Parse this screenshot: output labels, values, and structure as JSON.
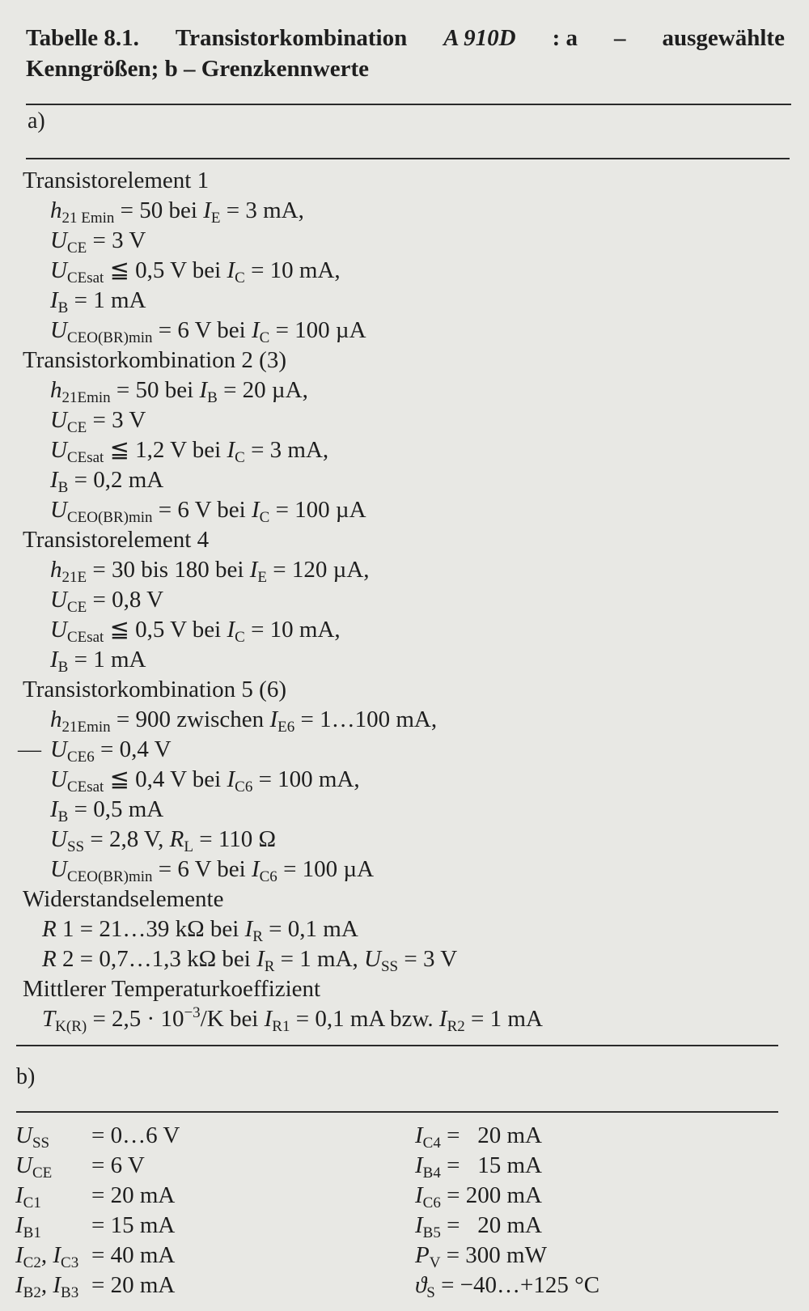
{
  "title": {
    "line1": [
      {
        "t": "Tabelle 8.1.",
        "f": ""
      },
      {
        "t": "Transistorkombination",
        "f": ""
      },
      {
        "t": "A 910D",
        "f": "i"
      },
      {
        "t": ": a",
        "f": ""
      },
      {
        "t": "–",
        "f": ""
      },
      {
        "t": "ausgewählte",
        "f": ""
      }
    ],
    "line2": "Kenngrößen; b – Grenzkennwerte"
  },
  "section_a": {
    "label": "a)",
    "lines": [
      {
        "k": "h",
        "seg": [
          {
            "t": "Transistorelement 1",
            "f": ""
          }
        ]
      },
      {
        "k": "it",
        "seg": [
          {
            "t": "h",
            "f": "i"
          },
          {
            "t": "21 Emin",
            "f": "s"
          },
          {
            "t": " = 50 bei ",
            "f": ""
          },
          {
            "t": "I",
            "f": "i"
          },
          {
            "t": "E",
            "f": "s"
          },
          {
            "t": " = 3 mA,",
            "f": ""
          }
        ]
      },
      {
        "k": "it",
        "seg": [
          {
            "t": "U",
            "f": "i"
          },
          {
            "t": "CE",
            "f": "s"
          },
          {
            "t": " = 3 V",
            "f": ""
          }
        ]
      },
      {
        "k": "it",
        "seg": [
          {
            "t": "U",
            "f": "i"
          },
          {
            "t": "CEsat",
            "f": "s"
          },
          {
            "t": " ≦ 0,5 V bei ",
            "f": ""
          },
          {
            "t": "I",
            "f": "i"
          },
          {
            "t": "C",
            "f": "s"
          },
          {
            "t": " = 10 mA,",
            "f": ""
          }
        ]
      },
      {
        "k": "it",
        "seg": [
          {
            "t": "I",
            "f": "i"
          },
          {
            "t": "B",
            "f": "s"
          },
          {
            "t": " = 1 mA",
            "f": ""
          }
        ]
      },
      {
        "k": "it",
        "seg": [
          {
            "t": "U",
            "f": "i"
          },
          {
            "t": "CEO(BR)min",
            "f": "s"
          },
          {
            "t": " = 6 V bei ",
            "f": ""
          },
          {
            "t": "I",
            "f": "i"
          },
          {
            "t": "C",
            "f": "s"
          },
          {
            "t": " = 100 µA",
            "f": ""
          }
        ]
      },
      {
        "k": "h",
        "seg": [
          {
            "t": "Transistorkombination 2 (3)",
            "f": ""
          }
        ]
      },
      {
        "k": "it",
        "seg": [
          {
            "t": "h",
            "f": "i"
          },
          {
            "t": "21Emin",
            "f": "s"
          },
          {
            "t": " = 50 bei ",
            "f": ""
          },
          {
            "t": "I",
            "f": "i"
          },
          {
            "t": "B",
            "f": "s"
          },
          {
            "t": " = 20 µA,",
            "f": ""
          }
        ]
      },
      {
        "k": "it",
        "seg": [
          {
            "t": "U",
            "f": "i"
          },
          {
            "t": "CE",
            "f": "s"
          },
          {
            "t": " = 3 V",
            "f": ""
          }
        ]
      },
      {
        "k": "it",
        "seg": [
          {
            "t": "U",
            "f": "i"
          },
          {
            "t": "CEsat",
            "f": "s"
          },
          {
            "t": " ≦ 1,2 V bei ",
            "f": ""
          },
          {
            "t": "I",
            "f": "i"
          },
          {
            "t": "C",
            "f": "s"
          },
          {
            "t": " = 3 mA,",
            "f": ""
          }
        ]
      },
      {
        "k": "it",
        "seg": [
          {
            "t": "I",
            "f": "i"
          },
          {
            "t": "B",
            "f": "s"
          },
          {
            "t": " = 0,2 mA",
            "f": ""
          }
        ]
      },
      {
        "k": "it",
        "seg": [
          {
            "t": "U",
            "f": "i"
          },
          {
            "t": "CEO(BR)min",
            "f": "s"
          },
          {
            "t": " = 6 V bei ",
            "f": ""
          },
          {
            "t": "I",
            "f": "i"
          },
          {
            "t": "C",
            "f": "s"
          },
          {
            "t": " = 100 µA",
            "f": ""
          }
        ]
      },
      {
        "k": "h",
        "seg": [
          {
            "t": "Transistorelement 4",
            "f": ""
          }
        ]
      },
      {
        "k": "it",
        "seg": [
          {
            "t": "h",
            "f": "i"
          },
          {
            "t": "21E",
            "f": "s"
          },
          {
            "t": " = 30 bis 180 bei ",
            "f": ""
          },
          {
            "t": "I",
            "f": "i"
          },
          {
            "t": "E",
            "f": "s"
          },
          {
            "t": " = 120 µA,",
            "f": ""
          }
        ]
      },
      {
        "k": "it",
        "seg": [
          {
            "t": "U",
            "f": "i"
          },
          {
            "t": "CE",
            "f": "s"
          },
          {
            "t": " = 0,8 V",
            "f": ""
          }
        ]
      },
      {
        "k": "it",
        "seg": [
          {
            "t": "U",
            "f": "i"
          },
          {
            "t": "CEsat",
            "f": "s"
          },
          {
            "t": " ≦ 0,5 V bei ",
            "f": ""
          },
          {
            "t": "I",
            "f": "i"
          },
          {
            "t": "C",
            "f": "s"
          },
          {
            "t": " = 10 mA,",
            "f": ""
          }
        ]
      },
      {
        "k": "it",
        "seg": [
          {
            "t": "I",
            "f": "i"
          },
          {
            "t": "B",
            "f": "s"
          },
          {
            "t": " = 1 mA",
            "f": ""
          }
        ]
      },
      {
        "k": "h",
        "seg": [
          {
            "t": "Transistorkombination 5 (6)",
            "f": ""
          }
        ]
      },
      {
        "k": "it",
        "seg": [
          {
            "t": "h",
            "f": "i"
          },
          {
            "t": "21Emin",
            "f": "s"
          },
          {
            "t": " = 900 zwischen ",
            "f": ""
          },
          {
            "t": "I",
            "f": "i"
          },
          {
            "t": "E6",
            "f": "s"
          },
          {
            "t": " = 1…100 mA,",
            "f": ""
          }
        ]
      },
      {
        "k": "it",
        "dash": "—",
        "seg": [
          {
            "t": "U",
            "f": "i"
          },
          {
            "t": "CE6",
            "f": "s"
          },
          {
            "t": " = 0,4 V",
            "f": ""
          }
        ]
      },
      {
        "k": "it",
        "seg": [
          {
            "t": "U",
            "f": "i"
          },
          {
            "t": "CEsat",
            "f": "s"
          },
          {
            "t": " ≦ 0,4 V bei ",
            "f": ""
          },
          {
            "t": "I",
            "f": "i"
          },
          {
            "t": "C6",
            "f": "s"
          },
          {
            "t": " = 100 mA,",
            "f": ""
          }
        ]
      },
      {
        "k": "it",
        "seg": [
          {
            "t": "I",
            "f": "i"
          },
          {
            "t": "B",
            "f": "s"
          },
          {
            "t": " = 0,5 mA",
            "f": ""
          }
        ]
      },
      {
        "k": "it",
        "seg": [
          {
            "t": "U",
            "f": "i"
          },
          {
            "t": "SS",
            "f": "s"
          },
          {
            "t": " = 2,8 V, ",
            "f": ""
          },
          {
            "t": "R",
            "f": "i"
          },
          {
            "t": "L",
            "f": "s"
          },
          {
            "t": " = 110 Ω",
            "f": ""
          }
        ]
      },
      {
        "k": "it",
        "seg": [
          {
            "t": "U",
            "f": "i"
          },
          {
            "t": "CEO(BR)min",
            "f": "s"
          },
          {
            "t": " = 6 V bei ",
            "f": ""
          },
          {
            "t": "I",
            "f": "i"
          },
          {
            "t": "C6",
            "f": "s"
          },
          {
            "t": " = 100 µA",
            "f": ""
          }
        ]
      },
      {
        "k": "h",
        "seg": [
          {
            "t": "Widerstandselemente",
            "f": ""
          }
        ]
      },
      {
        "k": "r",
        "seg": [
          {
            "t": "R",
            "f": "i"
          },
          {
            "t": " 1 = 21…39 kΩ bei ",
            "f": ""
          },
          {
            "t": "I",
            "f": "i"
          },
          {
            "t": "R",
            "f": "s"
          },
          {
            "t": " = 0,1 mA",
            "f": ""
          }
        ]
      },
      {
        "k": "r",
        "seg": [
          {
            "t": "R",
            "f": "i"
          },
          {
            "t": " 2 = 0,7…1,3 kΩ bei ",
            "f": ""
          },
          {
            "t": "I",
            "f": "i"
          },
          {
            "t": "R",
            "f": "s"
          },
          {
            "t": " = 1 mA, ",
            "f": ""
          },
          {
            "t": "U",
            "f": "i"
          },
          {
            "t": "SS",
            "f": "s"
          },
          {
            "t": " = 3 V",
            "f": ""
          }
        ]
      },
      {
        "k": "h",
        "seg": [
          {
            "t": "Mittlerer Temperaturkoeffizient",
            "f": ""
          }
        ]
      },
      {
        "k": "r",
        "seg": [
          {
            "t": "T",
            "f": "i"
          },
          {
            "t": "K(R)",
            "f": "s"
          },
          {
            "t": " = 2,5 · 10",
            "f": ""
          },
          {
            "t": "−3",
            "f": "p"
          },
          {
            "t": "/K bei ",
            "f": ""
          },
          {
            "t": "I",
            "f": "i"
          },
          {
            "t": "R1",
            "f": "s"
          },
          {
            "t": " = 0,1 mA bzw. ",
            "f": ""
          },
          {
            "t": "I",
            "f": "i"
          },
          {
            "t": "R2",
            "f": "s"
          },
          {
            "t": " = 1 mA",
            "f": ""
          }
        ]
      }
    ]
  },
  "section_b": {
    "label": "b)",
    "left": [
      {
        "sym": [
          {
            "t": "U",
            "f": "i"
          },
          {
            "t": "SS",
            "f": "s"
          }
        ],
        "val": "= 0…6 V"
      },
      {
        "sym": [
          {
            "t": "U",
            "f": "i"
          },
          {
            "t": "CE",
            "f": "s"
          }
        ],
        "val": "= 6 V"
      },
      {
        "sym": [
          {
            "t": "I",
            "f": "i"
          },
          {
            "t": "C1",
            "f": "s"
          }
        ],
        "val": "= 20 mA"
      },
      {
        "sym": [
          {
            "t": "I",
            "f": "i"
          },
          {
            "t": "B1",
            "f": "s"
          }
        ],
        "val": "= 15 mA"
      },
      {
        "sym": [
          {
            "t": "I",
            "f": "i"
          },
          {
            "t": "C2",
            "f": "s"
          },
          {
            "t": ", ",
            "f": ""
          },
          {
            "t": "I",
            "f": "i"
          },
          {
            "t": "C3",
            "f": "s"
          }
        ],
        "val": "= 40 mA"
      },
      {
        "sym": [
          {
            "t": "I",
            "f": "i"
          },
          {
            "t": "B2",
            "f": "s"
          },
          {
            "t": ", ",
            "f": ""
          },
          {
            "t": "I",
            "f": "i"
          },
          {
            "t": "B3",
            "f": "s"
          }
        ],
        "val": "= 20 mA"
      }
    ],
    "right": [
      {
        "sym": [
          {
            "t": "I",
            "f": "i"
          },
          {
            "t": "C4",
            "f": "s"
          }
        ],
        "val": " =   20 mA"
      },
      {
        "sym": [
          {
            "t": "I",
            "f": "i"
          },
          {
            "t": "B4",
            "f": "s"
          }
        ],
        "val": " =   15 mA"
      },
      {
        "sym": [
          {
            "t": "I",
            "f": "i"
          },
          {
            "t": "C6",
            "f": "s"
          }
        ],
        "val": " = 200 mA"
      },
      {
        "sym": [
          {
            "t": "I",
            "f": "i"
          },
          {
            "t": "B5",
            "f": "s"
          }
        ],
        "val": " =   20 mA"
      },
      {
        "sym": [
          {
            "t": "P",
            "f": "i"
          },
          {
            "t": "V",
            "f": "s"
          }
        ],
        "val": " = 300 mW"
      },
      {
        "sym": [
          {
            "t": "ϑ",
            "f": "i"
          },
          {
            "t": "S",
            "f": "s"
          }
        ],
        "val": " = −40…+125 °C"
      }
    ]
  }
}
